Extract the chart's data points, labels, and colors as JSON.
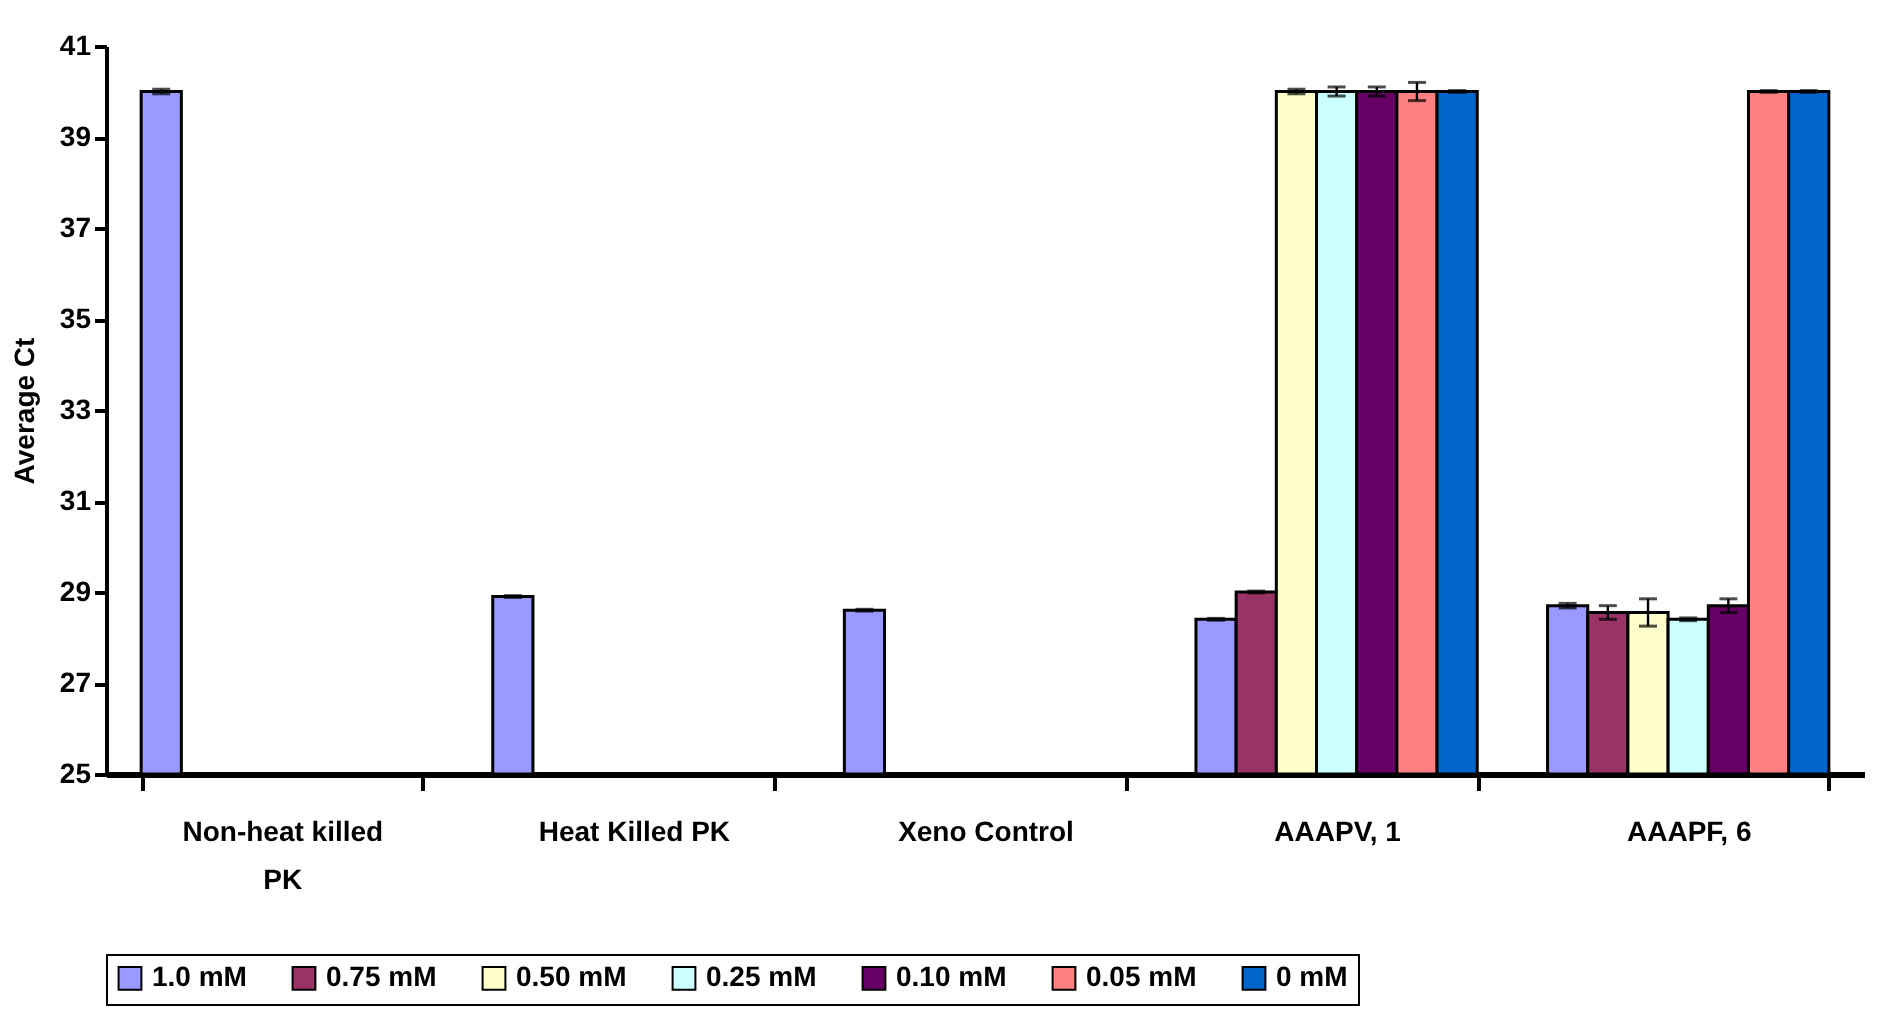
{
  "chart_data": {
    "type": "bar",
    "ylabel": "Average Ct",
    "categories": [
      "Non-heat killed PK",
      "Heat Killed PK",
      "Xeno Control",
      "AAAPV, 1",
      "AAAPF, 6"
    ],
    "ylim": [
      25,
      41
    ],
    "yticks": [
      25,
      27,
      29,
      31,
      33,
      35,
      37,
      39,
      41
    ],
    "grid": false,
    "legend": "bottom",
    "series": [
      {
        "name": "1.0 mM",
        "color": "#9999ff",
        "values": [
          40.0,
          28.9,
          28.6,
          28.4,
          28.7
        ],
        "errors": [
          0.05,
          0.02,
          0.02,
          0.02,
          0.05
        ]
      },
      {
        "name": "0.75 mM",
        "color": "#993366",
        "values": [
          null,
          null,
          null,
          29.0,
          28.55
        ],
        "errors": [
          null,
          null,
          null,
          0.02,
          0.15
        ]
      },
      {
        "name": "0.50 mM",
        "color": "#ffffcc",
        "values": [
          null,
          null,
          null,
          40.0,
          28.55
        ],
        "errors": [
          null,
          null,
          null,
          0.05,
          0.3
        ]
      },
      {
        "name": "0.25 mM",
        "color": "#ccffff",
        "values": [
          null,
          null,
          null,
          40.0,
          28.4
        ],
        "errors": [
          null,
          null,
          null,
          0.1,
          0.03
        ]
      },
      {
        "name": "0.10 mM",
        "color": "#660066",
        "values": [
          null,
          null,
          null,
          40.0,
          28.7
        ],
        "errors": [
          null,
          null,
          null,
          0.1,
          0.15
        ]
      },
      {
        "name": "0.05 mM",
        "color": "#ff8080",
        "values": [
          null,
          null,
          null,
          40.0,
          40.0
        ],
        "errors": [
          null,
          null,
          null,
          0.2,
          0.02
        ]
      },
      {
        "name": "0 mM",
        "color": "#0066cc",
        "values": [
          null,
          null,
          null,
          40.0,
          40.0
        ],
        "errors": [
          null,
          null,
          null,
          0.02,
          0.02
        ]
      }
    ]
  }
}
